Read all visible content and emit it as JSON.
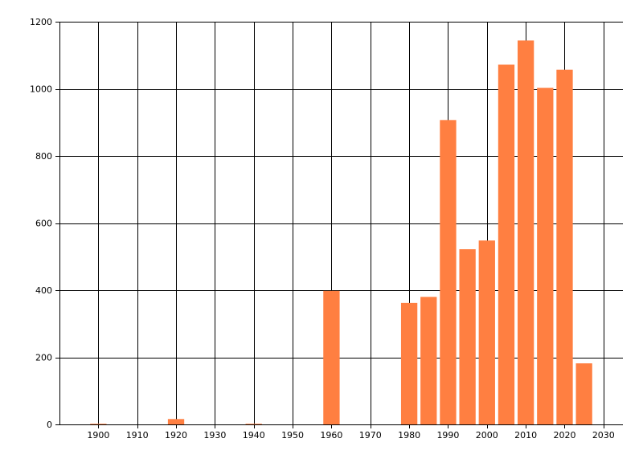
{
  "chart_data": {
    "type": "bar",
    "title": "",
    "xlabel": "",
    "ylabel": "",
    "x": [
      1900,
      1920,
      1940,
      1960,
      1980,
      1985,
      1990,
      1995,
      2000,
      2005,
      2010,
      2015,
      2020,
      2025
    ],
    "values": [
      2,
      16,
      2,
      398,
      362,
      380,
      907,
      522,
      548,
      1072,
      1144,
      1003,
      1057,
      182
    ],
    "xlim": [
      1890,
      2035
    ],
    "ylim": [
      0,
      1200
    ],
    "x_ticks": [
      "1900",
      "1910",
      "1920",
      "1930",
      "1940",
      "1950",
      "1960",
      "1970",
      "1980",
      "1990",
      "2000",
      "2010",
      "2020",
      "2030"
    ],
    "y_ticks": [
      "0",
      "200",
      "400",
      "600",
      "800",
      "1000",
      "1200"
    ],
    "grid": true,
    "bar_color": "#ff7f41",
    "grid_color": "#000000"
  }
}
